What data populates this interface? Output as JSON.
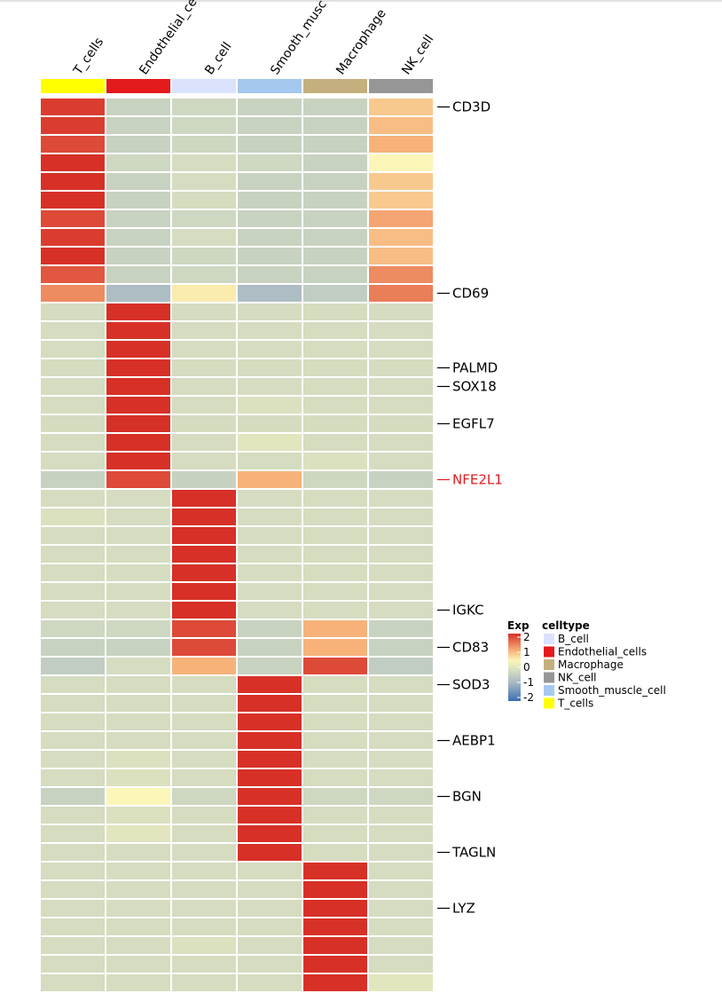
{
  "chart_data": {
    "type": "heatmap",
    "columns": [
      "T_cells",
      "Endothelial_cells",
      "B_cell",
      "Smooth_muscle_cell",
      "Macrophage",
      "NK_cell"
    ],
    "column_labels_shown": [
      "T_cells",
      "Endothelial_ce",
      "B_cell",
      "Smooth_musc",
      "Macrophage",
      "NK_cell"
    ],
    "column_annotation_colors": [
      "#ffff00",
      "#e41a1c",
      "#dbe2fc",
      "#a5c8ef",
      "#c3b07e",
      "#969696"
    ],
    "row_labels": [
      {
        "row": 0,
        "label": "CD3D",
        "color": "#000000"
      },
      {
        "row": 10,
        "label": "CD69",
        "color": "#000000"
      },
      {
        "row": 14,
        "label": "PALMD",
        "color": "#000000"
      },
      {
        "row": 15,
        "label": "SOX18",
        "color": "#000000"
      },
      {
        "row": 17,
        "label": "EGFL7",
        "color": "#000000"
      },
      {
        "row": 20,
        "label": "NFE2L1",
        "color": "#e41a1c"
      },
      {
        "row": 27,
        "label": "IGKC",
        "color": "#000000"
      },
      {
        "row": 29,
        "label": "CD83",
        "color": "#000000"
      },
      {
        "row": 31,
        "label": "SOD3",
        "color": "#000000"
      },
      {
        "row": 34,
        "label": "AEBP1",
        "color": "#000000"
      },
      {
        "row": 37,
        "label": "BGN",
        "color": "#000000"
      },
      {
        "row": 40,
        "label": "TAGLN",
        "color": "#000000"
      },
      {
        "row": 43,
        "label": "LYZ",
        "color": "#000000"
      }
    ],
    "values": [
      [
        1.9,
        -0.4,
        -0.3,
        -0.4,
        -0.4,
        0.8
      ],
      [
        1.9,
        -0.4,
        -0.3,
        -0.4,
        -0.4,
        0.9
      ],
      [
        1.8,
        -0.4,
        -0.3,
        -0.4,
        -0.4,
        1.0
      ],
      [
        2.0,
        -0.3,
        -0.2,
        -0.3,
        -0.4,
        0.4
      ],
      [
        2.0,
        -0.4,
        -0.2,
        -0.4,
        -0.4,
        0.8
      ],
      [
        2.0,
        -0.4,
        -0.2,
        -0.4,
        -0.4,
        0.8
      ],
      [
        1.8,
        -0.4,
        -0.3,
        -0.4,
        -0.4,
        1.1
      ],
      [
        1.9,
        -0.4,
        -0.2,
        -0.4,
        -0.4,
        0.9
      ],
      [
        2.0,
        -0.4,
        -0.3,
        -0.4,
        -0.4,
        0.9
      ],
      [
        1.7,
        -0.4,
        -0.3,
        -0.4,
        -0.4,
        1.3
      ],
      [
        1.3,
        -0.8,
        0.5,
        -0.8,
        -0.5,
        1.4
      ],
      [
        -0.2,
        2.0,
        -0.2,
        -0.2,
        -0.2,
        -0.2
      ],
      [
        -0.2,
        2.0,
        -0.2,
        -0.2,
        -0.2,
        -0.2
      ],
      [
        -0.2,
        2.0,
        -0.2,
        -0.2,
        -0.2,
        -0.2
      ],
      [
        -0.2,
        2.0,
        -0.2,
        -0.2,
        -0.2,
        -0.2
      ],
      [
        -0.2,
        2.0,
        -0.2,
        -0.2,
        -0.2,
        -0.2
      ],
      [
        -0.2,
        2.0,
        -0.2,
        -0.1,
        -0.2,
        -0.2
      ],
      [
        -0.2,
        2.0,
        -0.2,
        -0.2,
        -0.2,
        -0.2
      ],
      [
        -0.2,
        2.0,
        -0.2,
        0.0,
        -0.2,
        -0.2
      ],
      [
        -0.2,
        2.0,
        -0.2,
        -0.2,
        -0.1,
        -0.2
      ],
      [
        -0.4,
        1.8,
        -0.4,
        1.0,
        -0.3,
        -0.4
      ],
      [
        -0.2,
        -0.2,
        2.0,
        -0.2,
        -0.2,
        -0.2
      ],
      [
        -0.1,
        -0.2,
        2.0,
        -0.2,
        -0.2,
        -0.2
      ],
      [
        -0.2,
        -0.2,
        2.0,
        -0.2,
        -0.2,
        -0.2
      ],
      [
        -0.2,
        -0.2,
        2.0,
        -0.2,
        -0.2,
        -0.2
      ],
      [
        -0.2,
        -0.2,
        2.0,
        -0.2,
        -0.2,
        -0.2
      ],
      [
        -0.2,
        -0.2,
        2.0,
        -0.2,
        -0.2,
        -0.2
      ],
      [
        -0.2,
        -0.2,
        2.0,
        -0.2,
        -0.2,
        -0.2
      ],
      [
        -0.3,
        -0.3,
        1.8,
        -0.4,
        1.0,
        -0.4
      ],
      [
        -0.4,
        -0.4,
        1.8,
        -0.4,
        1.0,
        -0.4
      ],
      [
        -0.5,
        -0.2,
        1.0,
        -0.4,
        1.8,
        -0.5
      ],
      [
        -0.2,
        -0.2,
        -0.2,
        2.0,
        -0.2,
        -0.2
      ],
      [
        -0.2,
        -0.2,
        -0.2,
        2.0,
        -0.2,
        -0.2
      ],
      [
        -0.2,
        -0.2,
        -0.2,
        2.0,
        -0.2,
        -0.2
      ],
      [
        -0.2,
        -0.2,
        -0.2,
        2.0,
        -0.2,
        -0.2
      ],
      [
        -0.2,
        -0.1,
        -0.2,
        2.0,
        -0.2,
        -0.2
      ],
      [
        -0.2,
        -0.1,
        -0.2,
        2.0,
        -0.2,
        -0.2
      ],
      [
        -0.4,
        0.4,
        -0.3,
        2.0,
        -0.3,
        -0.3
      ],
      [
        -0.2,
        -0.1,
        -0.2,
        2.0,
        -0.2,
        -0.2
      ],
      [
        -0.2,
        0.0,
        -0.2,
        2.0,
        -0.2,
        -0.2
      ],
      [
        -0.2,
        -0.2,
        -0.2,
        2.0,
        -0.2,
        -0.2
      ],
      [
        -0.2,
        -0.2,
        -0.2,
        -0.2,
        2.0,
        -0.2
      ],
      [
        -0.2,
        -0.2,
        -0.2,
        -0.2,
        2.0,
        -0.2
      ],
      [
        -0.2,
        -0.2,
        -0.2,
        -0.2,
        2.0,
        -0.2
      ],
      [
        -0.2,
        -0.2,
        -0.2,
        -0.2,
        2.0,
        -0.2
      ],
      [
        -0.2,
        -0.2,
        -0.1,
        -0.2,
        2.0,
        -0.2
      ],
      [
        -0.2,
        -0.2,
        -0.2,
        -0.2,
        2.0,
        -0.2
      ],
      [
        -0.2,
        -0.2,
        -0.2,
        -0.2,
        2.0,
        0.0
      ]
    ],
    "color_scale": {
      "min": -2,
      "max": 2,
      "stops": [
        {
          "v": -2,
          "c": "#3a6fb0"
        },
        {
          "v": -1,
          "c": "#9fb3c4"
        },
        {
          "v": -0.2,
          "c": "#d5dcc0"
        },
        {
          "v": 0.4,
          "c": "#fbf6b8"
        },
        {
          "v": 1,
          "c": "#f7b27a"
        },
        {
          "v": 2,
          "c": "#d73027"
        }
      ]
    },
    "legend": {
      "exp_title": "Exp",
      "exp_ticks": [
        "2",
        "1",
        "0",
        "-1",
        "-2"
      ],
      "celltype_title": "celltype",
      "celltype_entries": [
        {
          "label": "B_cell",
          "color": "#dbe2fc"
        },
        {
          "label": "Endothelial_cells",
          "color": "#e41a1c"
        },
        {
          "label": "Macrophage",
          "color": "#c3b07e"
        },
        {
          "label": "NK_cell",
          "color": "#969696"
        },
        {
          "label": "Smooth_muscle_cell",
          "color": "#a5c8ef"
        },
        {
          "label": "T_cells",
          "color": "#ffff00"
        }
      ]
    }
  }
}
